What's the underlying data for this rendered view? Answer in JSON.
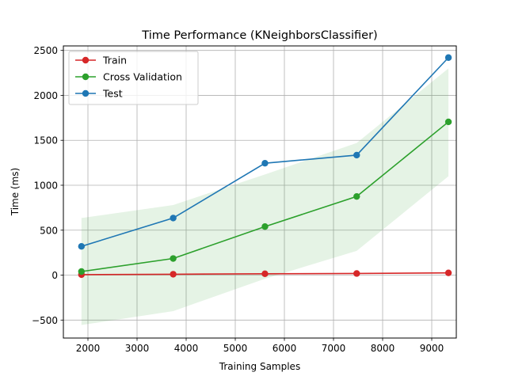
{
  "chart_data": {
    "type": "line",
    "title": "Time Performance (KNeighborsClassifier)",
    "xlabel": "Training Samples",
    "ylabel": "Time (ms)",
    "xlim": [
      1500,
      9500
    ],
    "ylim": [
      -700,
      2550
    ],
    "xticks": [
      2000,
      3000,
      4000,
      5000,
      6000,
      7000,
      8000,
      9000
    ],
    "yticks": [
      -500,
      0,
      500,
      1000,
      1500,
      2000,
      2500
    ],
    "xtick_labels": [
      "2000",
      "3000",
      "4000",
      "5000",
      "6000",
      "7000",
      "8000",
      "9000"
    ],
    "ytick_labels": [
      "−500",
      "0",
      "500",
      "1000",
      "1500",
      "2000",
      "2500"
    ],
    "grid": true,
    "legend_position": "top-left",
    "x": [
      1868,
      3736,
      5604,
      7472,
      9340
    ],
    "series": [
      {
        "name": "Train",
        "color": "#d62728",
        "values": [
          5,
          10,
          15,
          18,
          25
        ]
      },
      {
        "name": "Cross Validation",
        "color": "#2ca02c",
        "values": [
          40,
          185,
          540,
          875,
          1705
        ]
      },
      {
        "name": "Test",
        "color": "#1f77b4",
        "values": [
          320,
          635,
          1245,
          1335,
          2420
        ]
      }
    ],
    "bands": [
      {
        "series": "Cross Validation",
        "color": "#2ca02c",
        "lower": [
          -555,
          -400,
          -40,
          270,
          1100
        ],
        "upper": [
          635,
          780,
          1120,
          1470,
          2300
        ]
      }
    ]
  }
}
